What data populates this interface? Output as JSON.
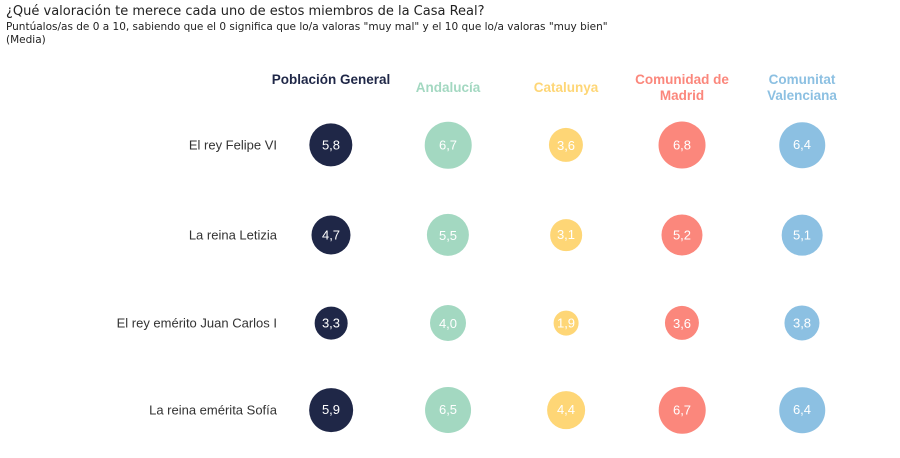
{
  "chart_data": {
    "type": "bubble-table",
    "title": "¿Qué valoración te merece cada uno de estos miembros de la Casa Real?",
    "subtitle": "Puntúalos/as de 0 a 10, sabiendo que el 0 significa que lo/a valoras \"muy mal\" y el 10 que lo/a valoras \"muy bien\"",
    "note": "(Media)",
    "columns": [
      {
        "name": "Población General",
        "color": "#1f2747"
      },
      {
        "name": "Andalucía",
        "color": "#a3d8c1"
      },
      {
        "name": "Catalunya",
        "color": "#fed676"
      },
      {
        "name": "Comunidad de Madrid",
        "color": "#fb877c"
      },
      {
        "name": "Comunitat Valenciana",
        "color": "#8cc0e2"
      }
    ],
    "rows": [
      "El rey Felipe VI",
      "La reina Letizia",
      "El rey emérito Juan Carlos I",
      "La reina emérita Sofía"
    ],
    "values": [
      [
        5.8,
        6.7,
        3.6,
        6.8,
        6.4
      ],
      [
        4.7,
        5.5,
        3.1,
        5.2,
        5.1
      ],
      [
        3.3,
        4.0,
        1.9,
        3.6,
        3.8
      ],
      [
        5.9,
        6.5,
        4.4,
        6.7,
        6.4
      ]
    ],
    "labels": [
      [
        "5,8",
        "6,7",
        "3,6",
        "6,8",
        "6,4"
      ],
      [
        "4,7",
        "5,5",
        "3,1",
        "5,2",
        "5,1"
      ],
      [
        "3,3",
        "4,0",
        "1,9",
        "3,6",
        "3,8"
      ],
      [
        "5,9",
        "6,5",
        "4,4",
        "6,7",
        "6,4"
      ]
    ]
  }
}
